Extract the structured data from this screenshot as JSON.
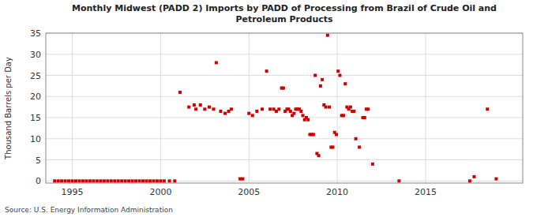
{
  "chart_data": {
    "type": "scatter",
    "title": "Monthly Midwest (PADD 2) Imports by PADD of Processing from Brazil of Crude Oil and\nPetroleum Products",
    "ylabel": "Thousand Barrels per Day",
    "source": "Source: U.S. Energy Information Administration",
    "color": "#cc0000",
    "marker": "square",
    "grid": true,
    "xlim": [
      1993.5,
      2020.5
    ],
    "ylim": [
      -0.5,
      35
    ],
    "xticks": [
      1995,
      2000,
      2005,
      2010,
      2015
    ],
    "yticks": [
      0,
      5,
      10,
      15,
      20,
      25,
      30,
      35
    ],
    "x": [
      1994.0,
      1994.2,
      1994.4,
      1994.6,
      1994.8,
      1995.0,
      1995.2,
      1995.4,
      1995.6,
      1995.8,
      1996.0,
      1996.2,
      1996.4,
      1996.6,
      1996.8,
      1997.0,
      1997.2,
      1997.4,
      1997.6,
      1997.8,
      1998.0,
      1998.2,
      1998.4,
      1998.6,
      1998.8,
      1999.0,
      1999.2,
      1999.4,
      1999.6,
      1999.8,
      2000.0,
      2000.2,
      2000.5,
      2000.8,
      2001.1,
      2001.6,
      2001.9,
      2002.0,
      2002.25,
      2002.5,
      2002.75,
      2003.0,
      2003.15,
      2003.4,
      2003.65,
      2003.85,
      2004.0,
      2004.5,
      2004.65,
      2005.0,
      2005.2,
      2005.45,
      2005.75,
      2006.0,
      2006.2,
      2006.4,
      2006.55,
      2006.7,
      2006.85,
      2006.95,
      2007.05,
      2007.15,
      2007.25,
      2007.35,
      2007.45,
      2007.55,
      2007.65,
      2007.75,
      2007.85,
      2007.95,
      2008.05,
      2008.15,
      2008.25,
      2008.35,
      2008.45,
      2008.55,
      2008.65,
      2008.75,
      2008.85,
      2008.95,
      2009.05,
      2009.15,
      2009.25,
      2009.35,
      2009.45,
      2009.55,
      2009.65,
      2009.75,
      2009.85,
      2009.95,
      2010.05,
      2010.15,
      2010.25,
      2010.35,
      2010.45,
      2010.55,
      2010.65,
      2010.75,
      2010.85,
      2010.95,
      2011.05,
      2011.25,
      2011.45,
      2011.55,
      2011.65,
      2011.75,
      2012.0,
      2013.5,
      2017.5,
      2017.75,
      2018.5,
      2019.0
    ],
    "values": [
      0.0,
      0.0,
      0.0,
      0.0,
      0.0,
      0.0,
      0.0,
      0.0,
      0.0,
      0.0,
      0.0,
      0.0,
      0.0,
      0.0,
      0.0,
      0.0,
      0.0,
      0.0,
      0.0,
      0.0,
      0.0,
      0.0,
      0.0,
      0.0,
      0.0,
      0.0,
      0.0,
      0.0,
      0.0,
      0.0,
      0.0,
      0.0,
      0.0,
      0.0,
      21.0,
      17.5,
      18.0,
      17.0,
      18.0,
      17.0,
      17.5,
      17.0,
      28.0,
      16.5,
      16.0,
      16.5,
      17.0,
      0.5,
      0.5,
      16.0,
      15.5,
      16.5,
      17.0,
      26.0,
      17.0,
      17.0,
      16.5,
      17.0,
      22.0,
      22.0,
      16.5,
      17.0,
      17.0,
      16.5,
      15.5,
      16.0,
      17.0,
      17.0,
      17.0,
      16.5,
      15.5,
      14.5,
      15.0,
      14.5,
      11.0,
      11.0,
      11.0,
      25.0,
      6.5,
      6.0,
      22.5,
      24.0,
      18.0,
      17.5,
      34.5,
      17.5,
      8.0,
      8.0,
      11.5,
      11.0,
      26.0,
      25.0,
      15.5,
      15.5,
      23.0,
      17.5,
      17.0,
      17.5,
      16.5,
      16.5,
      10.0,
      8.0,
      15.0,
      15.0,
      17.0,
      17.0,
      4.0,
      0.0,
      0.0,
      1.0,
      17.0,
      0.5
    ]
  }
}
